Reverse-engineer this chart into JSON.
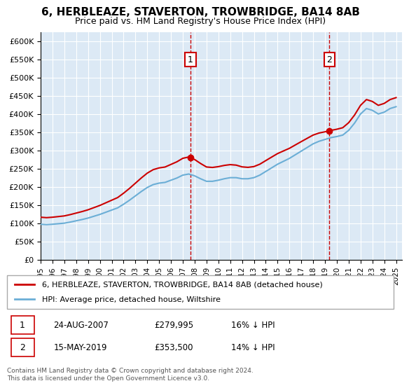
{
  "title": "6, HERBLEAZE, STAVERTON, TROWBRIDGE, BA14 8AB",
  "subtitle": "Price paid vs. HM Land Registry's House Price Index (HPI)",
  "legend_line1": "6, HERBLEAZE, STAVERTON, TROWBRIDGE, BA14 8AB (detached house)",
  "legend_line2": "HPI: Average price, detached house, Wiltshire",
  "marker1_date": "24-AUG-2007",
  "marker1_price": 279995,
  "marker1_label": "16% ↓ HPI",
  "marker2_date": "15-MAY-2019",
  "marker2_price": 353500,
  "marker2_label": "14% ↓ HPI",
  "footnote": "Contains HM Land Registry data © Crown copyright and database right 2024.\nThis data is licensed under the Open Government Licence v3.0.",
  "hpi_color": "#6baed6",
  "sale_color": "#cc0000",
  "marker_color": "#cc0000",
  "vline_color": "#cc0000",
  "background_color": "#dce9f5",
  "ylim": [
    0,
    625000
  ],
  "yticks": [
    0,
    50000,
    100000,
    150000,
    200000,
    250000,
    300000,
    350000,
    400000,
    450000,
    500000,
    550000,
    600000
  ],
  "xlim_start": 1995.0,
  "xlim_end": 2025.5,
  "xticks": [
    1995,
    1996,
    1997,
    1998,
    1999,
    2000,
    2001,
    2002,
    2003,
    2004,
    2005,
    2006,
    2007,
    2008,
    2009,
    2010,
    2011,
    2012,
    2013,
    2014,
    2015,
    2016,
    2017,
    2018,
    2019,
    2020,
    2021,
    2022,
    2023,
    2024,
    2025
  ],
  "hpi_years": [
    1995.0,
    1995.5,
    1996.0,
    1996.5,
    1997.0,
    1997.5,
    1998.0,
    1998.5,
    1999.0,
    1999.5,
    2000.0,
    2000.5,
    2001.0,
    2001.5,
    2002.0,
    2002.5,
    2003.0,
    2003.5,
    2004.0,
    2004.5,
    2005.0,
    2005.5,
    2006.0,
    2006.5,
    2007.0,
    2007.5,
    2008.0,
    2008.5,
    2009.0,
    2009.5,
    2010.0,
    2010.5,
    2011.0,
    2011.5,
    2012.0,
    2012.5,
    2013.0,
    2013.5,
    2014.0,
    2014.5,
    2015.0,
    2015.5,
    2016.0,
    2016.5,
    2017.0,
    2017.5,
    2018.0,
    2018.5,
    2019.0,
    2019.5,
    2020.0,
    2020.5,
    2021.0,
    2021.5,
    2022.0,
    2022.5,
    2023.0,
    2023.5,
    2024.0,
    2024.5,
    2025.0
  ],
  "hpi_values": [
    97000,
    96000,
    97000,
    98500,
    100000,
    103000,
    106500,
    110000,
    114000,
    119000,
    124000,
    130000,
    136000,
    142000,
    152000,
    163000,
    175000,
    187000,
    198000,
    206000,
    210000,
    212000,
    218000,
    224000,
    232000,
    235000,
    230000,
    222000,
    215000,
    215000,
    218000,
    222000,
    225000,
    225000,
    222000,
    222000,
    225000,
    232000,
    242000,
    252000,
    262000,
    270000,
    278000,
    288000,
    298000,
    308000,
    318000,
    325000,
    330000,
    335000,
    338000,
    342000,
    355000,
    375000,
    400000,
    415000,
    410000,
    400000,
    405000,
    415000,
    420000
  ],
  "sale_years": [
    2007.65,
    2019.37
  ],
  "sale_prices": [
    279995,
    353500
  ],
  "marker1_x": 2007.65,
  "marker1_y": 279995,
  "marker2_x": 2019.37,
  "marker2_y": 353500
}
